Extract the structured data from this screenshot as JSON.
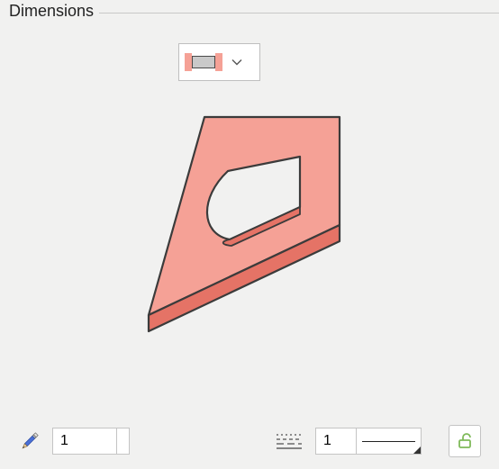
{
  "panel": {
    "title": "Dimensions"
  },
  "mode": {
    "outer_color": "#f5a196",
    "inner_color": "#c9c9c9"
  },
  "preview": {
    "type": "isometric-slab",
    "top_color": "#f5a196",
    "side_color": "#e57366",
    "stroke": "#3b3b3b"
  },
  "toolbar": {
    "pencil_colors": {
      "body": "#4a6fd6",
      "eraser": "#e3e1dc",
      "ferrule": "#bdbdbd"
    },
    "count_value": "1",
    "linetype_icon_color": "#606060",
    "lineweight_value": "1",
    "lock_state": "unlocked",
    "lock_color": "#7fba5a"
  }
}
